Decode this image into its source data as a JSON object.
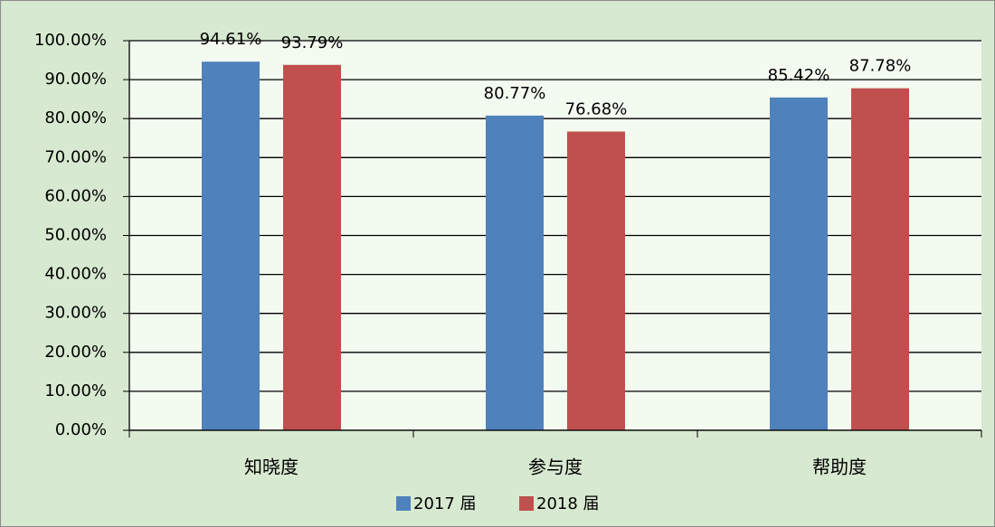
{
  "chart_data": {
    "type": "bar",
    "categories": [
      "知晓度",
      "参与度",
      "帮助度"
    ],
    "series": [
      {
        "name": "2017 届",
        "color": "#4f81bd",
        "values": [
          94.61,
          80.77,
          85.42
        ],
        "value_labels": [
          "94.61%",
          "80.77%",
          "85.42%"
        ]
      },
      {
        "name": "2018 届",
        "color": "#c0504d",
        "values": [
          93.79,
          76.68,
          87.78
        ],
        "value_labels": [
          "93.79%",
          "76.68%",
          "87.78%"
        ]
      }
    ],
    "ylim": [
      0,
      100
    ],
    "yticks": [
      {
        "value": 0,
        "label": "0.00%"
      },
      {
        "value": 10,
        "label": "10.00%"
      },
      {
        "value": 20,
        "label": "20.00%"
      },
      {
        "value": 30,
        "label": "30.00%"
      },
      {
        "value": 40,
        "label": "40.00%"
      },
      {
        "value": 50,
        "label": "50.00%"
      },
      {
        "value": 60,
        "label": "60.00%"
      },
      {
        "value": 70,
        "label": "70.00%"
      },
      {
        "value": 80,
        "label": "80.00%"
      },
      {
        "value": 90,
        "label": "90.00%"
      },
      {
        "value": 100,
        "label": "100.00%"
      }
    ],
    "grid": true,
    "legend": "bottom"
  }
}
